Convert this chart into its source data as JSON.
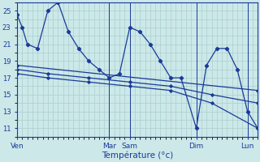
{
  "background_color": "#cce8e8",
  "grid_color": "#aacfcf",
  "line_color": "#1a3a9a",
  "xlabel": "Température (°c)",
  "ylim": [
    10,
    26
  ],
  "yticks": [
    11,
    13,
    15,
    17,
    19,
    21,
    23,
    25
  ],
  "day_labels": [
    "Ven",
    "Mar",
    "Sam",
    "Dim",
    "Lun"
  ],
  "day_x": [
    0,
    18,
    22,
    35,
    45
  ],
  "xlim": [
    0,
    47
  ],
  "main_x": [
    0,
    1,
    2,
    4,
    6,
    8,
    10,
    12,
    14,
    16,
    18,
    20,
    22,
    24,
    26,
    28,
    30,
    32,
    35,
    37,
    39,
    41,
    43,
    45,
    47
  ],
  "main_y": [
    24.5,
    23.0,
    21.0,
    20.5,
    25.0,
    26.0,
    22.5,
    20.5,
    19.0,
    18.0,
    17.0,
    17.5,
    23.0,
    22.5,
    21.0,
    19.0,
    17.0,
    17.0,
    11.0,
    18.5,
    20.5,
    20.5,
    18.0,
    13.0,
    11.0
  ],
  "trend1_x": [
    0,
    47
  ],
  "trend1_y": [
    18.5,
    15.5
  ],
  "trend2_x": [
    0,
    6,
    14,
    22,
    30,
    38,
    47
  ],
  "trend2_y": [
    18.0,
    17.5,
    17.0,
    16.5,
    16.0,
    15.0,
    14.0
  ],
  "trend3_x": [
    0,
    6,
    14,
    22,
    30,
    38,
    47
  ],
  "trend3_y": [
    17.5,
    17.0,
    16.5,
    16.0,
    15.5,
    14.0,
    11.0
  ]
}
